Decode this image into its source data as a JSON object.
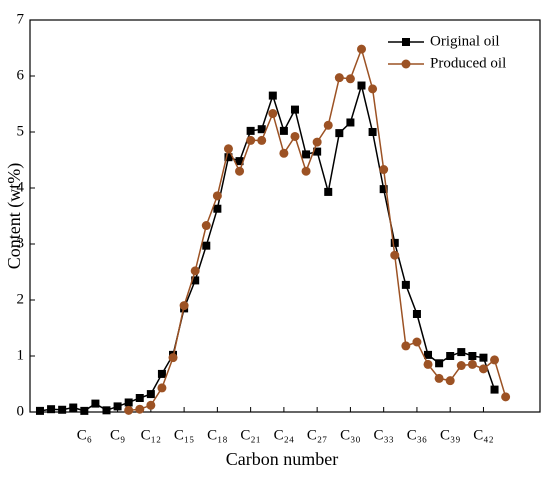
{
  "chart_data": {
    "type": "line",
    "x_label": "Carbon number",
    "y_label": "Content (wt%)",
    "x": [
      2,
      3,
      4,
      5,
      6,
      7,
      8,
      9,
      10,
      11,
      12,
      13,
      14,
      15,
      16,
      17,
      18,
      19,
      20,
      21,
      22,
      23,
      24,
      25,
      26,
      27,
      28,
      29,
      30,
      31,
      32,
      33,
      34,
      35,
      36,
      37,
      38,
      39,
      40,
      41,
      42,
      43,
      44
    ],
    "series": [
      {
        "name": "Original oil",
        "color": "#000000",
        "marker": "square",
        "values": [
          0.02,
          0.05,
          0.04,
          0.08,
          0.02,
          0.15,
          0.03,
          0.1,
          0.17,
          0.25,
          0.32,
          0.68,
          1.02,
          1.85,
          2.35,
          2.97,
          3.63,
          4.55,
          4.48,
          5.02,
          5.05,
          5.65,
          5.02,
          5.4,
          4.6,
          4.65,
          3.93,
          4.98,
          5.17,
          5.83,
          5.0,
          3.98,
          3.02,
          2.27,
          1.75,
          1.02,
          0.87,
          1.0,
          1.07,
          1.0,
          0.97,
          0.4,
          null
        ]
      },
      {
        "name": "Produced oil",
        "color": "#9c5224",
        "marker": "circle",
        "values": [
          null,
          null,
          null,
          null,
          null,
          null,
          null,
          null,
          0.03,
          0.05,
          0.12,
          0.43,
          0.97,
          1.9,
          2.52,
          3.33,
          3.86,
          4.7,
          4.3,
          4.85,
          4.85,
          5.33,
          4.62,
          4.92,
          4.3,
          4.82,
          5.12,
          5.97,
          5.95,
          6.48,
          5.77,
          4.33,
          2.8,
          1.18,
          1.25,
          0.85,
          0.6,
          0.56,
          0.83,
          0.85,
          0.77,
          0.93,
          0.27
        ]
      }
    ],
    "xlim": [
      1.1,
      47.1
    ],
    "xticks": [
      {
        "value": 6,
        "label": "C₆"
      },
      {
        "value": 9,
        "label": "C₉"
      },
      {
        "value": 12,
        "label": "C₁₂"
      },
      {
        "value": 15,
        "label": "C₁₅"
      },
      {
        "value": 18,
        "label": "C₁₈"
      },
      {
        "value": 21,
        "label": "C₂₁"
      },
      {
        "value": 24,
        "label": "C₂₄"
      },
      {
        "value": 27,
        "label": "C₂₇"
      },
      {
        "value": 30,
        "label": "C₃₀"
      },
      {
        "value": 33,
        "label": "C₃₃"
      },
      {
        "value": 36,
        "label": "C₃₆"
      },
      {
        "value": 39,
        "label": "C₃₉"
      },
      {
        "value": 42,
        "label": "C₄₂"
      }
    ],
    "ylim": [
      0,
      7
    ],
    "yticks": [
      0,
      1,
      2,
      3,
      4,
      5,
      6,
      7
    ],
    "legend": "upper right",
    "grid": false
  }
}
